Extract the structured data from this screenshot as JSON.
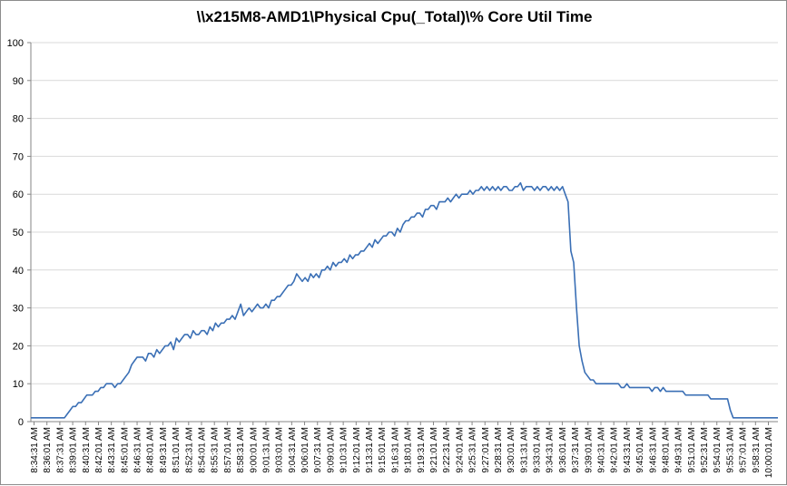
{
  "chart_data": {
    "type": "line",
    "title": "\\\\x215M8-AMD1\\Physical Cpu(_Total)\\% Core Util Time",
    "xlabel": "",
    "ylabel": "",
    "ylim": [
      0,
      100
    ],
    "yticks": [
      0,
      10,
      20,
      30,
      40,
      50,
      60,
      70,
      80,
      90,
      100
    ],
    "grid": true,
    "legend": "none",
    "line_color": "#3a6fb5",
    "x_tick_labels": [
      "8:34:31 AM",
      "8:36:01 AM",
      "8:37:31 AM",
      "8:39:01 AM",
      "8:40:31 AM",
      "8:42:01 AM",
      "8:43:31 AM",
      "8:45:01 AM",
      "8:46:31 AM",
      "8:48:01 AM",
      "8:49:31 AM",
      "8:51:01 AM",
      "8:52:31 AM",
      "8:54:01 AM",
      "8:55:31 AM",
      "8:57:01 AM",
      "8:58:31 AM",
      "9:00:01 AM",
      "9:01:31 AM",
      "9:03:01 AM",
      "9:04:31 AM",
      "9:06:01 AM",
      "9:07:31 AM",
      "9:09:01 AM",
      "9:10:31 AM",
      "9:12:01 AM",
      "9:13:31 AM",
      "9:15:01 AM",
      "9:16:31 AM",
      "9:18:01 AM",
      "9:19:31 AM",
      "9:21:01 AM",
      "9:22:31 AM",
      "9:24:01 AM",
      "9:25:31 AM",
      "9:27:01 AM",
      "9:28:31 AM",
      "9:30:01 AM",
      "9:31:31 AM",
      "9:33:01 AM",
      "9:34:31 AM",
      "9:36:01 AM",
      "9:37:31 AM",
      "9:39:01 AM",
      "9:40:31 AM",
      "9:42:01 AM",
      "9:43:31 AM",
      "9:45:01 AM",
      "9:46:31 AM",
      "9:48:01 AM",
      "9:49:31 AM",
      "9:51:01 AM",
      "9:52:31 AM",
      "9:54:01 AM",
      "9:55:31 AM",
      "9:57:01 AM",
      "9:58:31 AM",
      "10:00:01 AM"
    ],
    "series": [
      {
        "values": [
          1,
          1,
          1,
          1,
          1,
          1,
          1,
          1,
          1,
          1,
          1,
          1,
          1,
          2,
          3,
          4,
          4,
          5,
          5,
          6,
          7,
          7,
          7,
          8,
          8,
          9,
          9,
          10,
          10,
          10,
          9,
          10,
          10,
          11,
          12,
          13,
          15,
          16,
          17,
          17,
          17,
          16,
          18,
          18,
          17,
          19,
          18,
          19,
          20,
          20,
          21,
          19,
          22,
          21,
          22,
          23,
          23,
          22,
          24,
          23,
          23,
          24,
          24,
          23,
          25,
          24,
          26,
          25,
          26,
          26,
          27,
          27,
          28,
          27,
          29,
          31,
          28,
          29,
          30,
          29,
          30,
          31,
          30,
          30,
          31,
          30,
          32,
          32,
          33,
          33,
          34,
          35,
          36,
          36,
          37,
          39,
          38,
          37,
          38,
          37,
          39,
          38,
          39,
          38,
          40,
          40,
          41,
          40,
          42,
          41,
          42,
          42,
          43,
          42,
          44,
          43,
          44,
          44,
          45,
          45,
          46,
          47,
          46,
          48,
          47,
          48,
          49,
          49,
          50,
          50,
          49,
          51,
          50,
          52,
          53,
          53,
          54,
          54,
          55,
          55,
          54,
          56,
          56,
          57,
          57,
          56,
          58,
          58,
          58,
          59,
          58,
          59,
          60,
          59,
          60,
          60,
          60,
          61,
          60,
          61,
          61,
          62,
          61,
          62,
          61,
          62,
          61,
          62,
          61,
          62,
          62,
          61,
          61,
          62,
          62,
          63,
          61,
          62,
          62,
          62,
          61,
          62,
          61,
          62,
          62,
          61,
          62,
          61,
          62,
          61,
          62,
          60,
          58,
          45,
          42,
          30,
          20,
          16,
          13,
          12,
          11,
          11,
          10,
          10,
          10,
          10,
          10,
          10,
          10,
          10,
          10,
          9,
          9,
          10,
          9,
          9,
          9,
          9,
          9,
          9,
          9,
          9,
          8,
          9,
          9,
          8,
          9,
          8,
          8,
          8,
          8,
          8,
          8,
          8,
          7,
          7,
          7,
          7,
          7,
          7,
          7,
          7,
          7,
          6,
          6,
          6,
          6,
          6,
          6,
          6,
          3,
          1,
          1,
          1,
          1,
          1,
          1,
          1,
          1,
          1,
          1,
          1,
          1,
          1,
          1,
          1,
          1,
          1
        ]
      }
    ]
  }
}
